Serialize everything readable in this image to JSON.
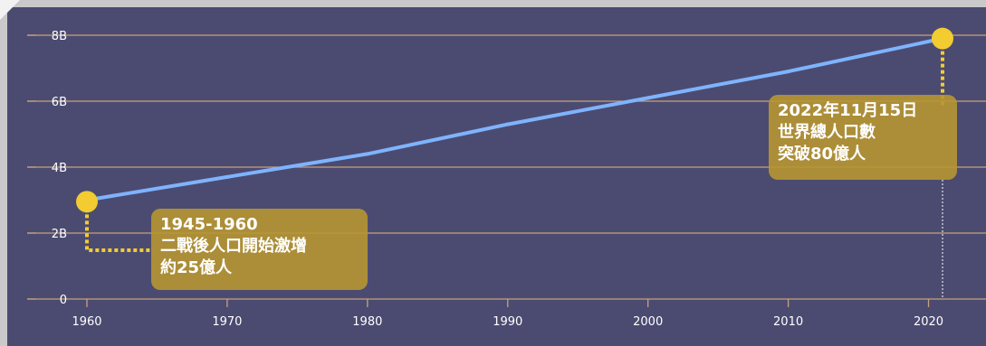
{
  "chart_data": {
    "type": "line",
    "x_ticks": [
      1960,
      1970,
      1980,
      1990,
      2000,
      2010,
      2020
    ],
    "y_ticks": [
      0,
      2,
      4,
      6,
      8
    ],
    "y_tick_labels": [
      "0",
      "2B",
      "4B",
      "6B",
      "8B"
    ],
    "xlim": [
      1960,
      2021
    ],
    "ylim": [
      0,
      8
    ],
    "grid": true,
    "series": [
      {
        "values_billion": [
          {
            "x": 1960,
            "y": 3.0
          },
          {
            "x": 1970,
            "y": 3.7
          },
          {
            "x": 1980,
            "y": 4.4
          },
          {
            "x": 1990,
            "y": 5.3
          },
          {
            "x": 2000,
            "y": 6.1
          },
          {
            "x": 2010,
            "y": 6.9
          },
          {
            "x": 2021,
            "y": 7.9
          }
        ]
      }
    ],
    "annotations": [
      {
        "x": 1960,
        "y": 2.95,
        "lines": [
          "1945-1960",
          "二戰後人口開始激增",
          "約25億人"
        ]
      },
      {
        "x": 2021,
        "y": 7.9,
        "lines": [
          "2022年11月15日",
          "世界總人口數",
          "突破80億人"
        ]
      }
    ]
  },
  "colors": {
    "background": "#4b4b71",
    "grid": "#c8a17a",
    "line": "#7fb3ff",
    "marker": "#f2cc30",
    "callout": "#b79632"
  }
}
